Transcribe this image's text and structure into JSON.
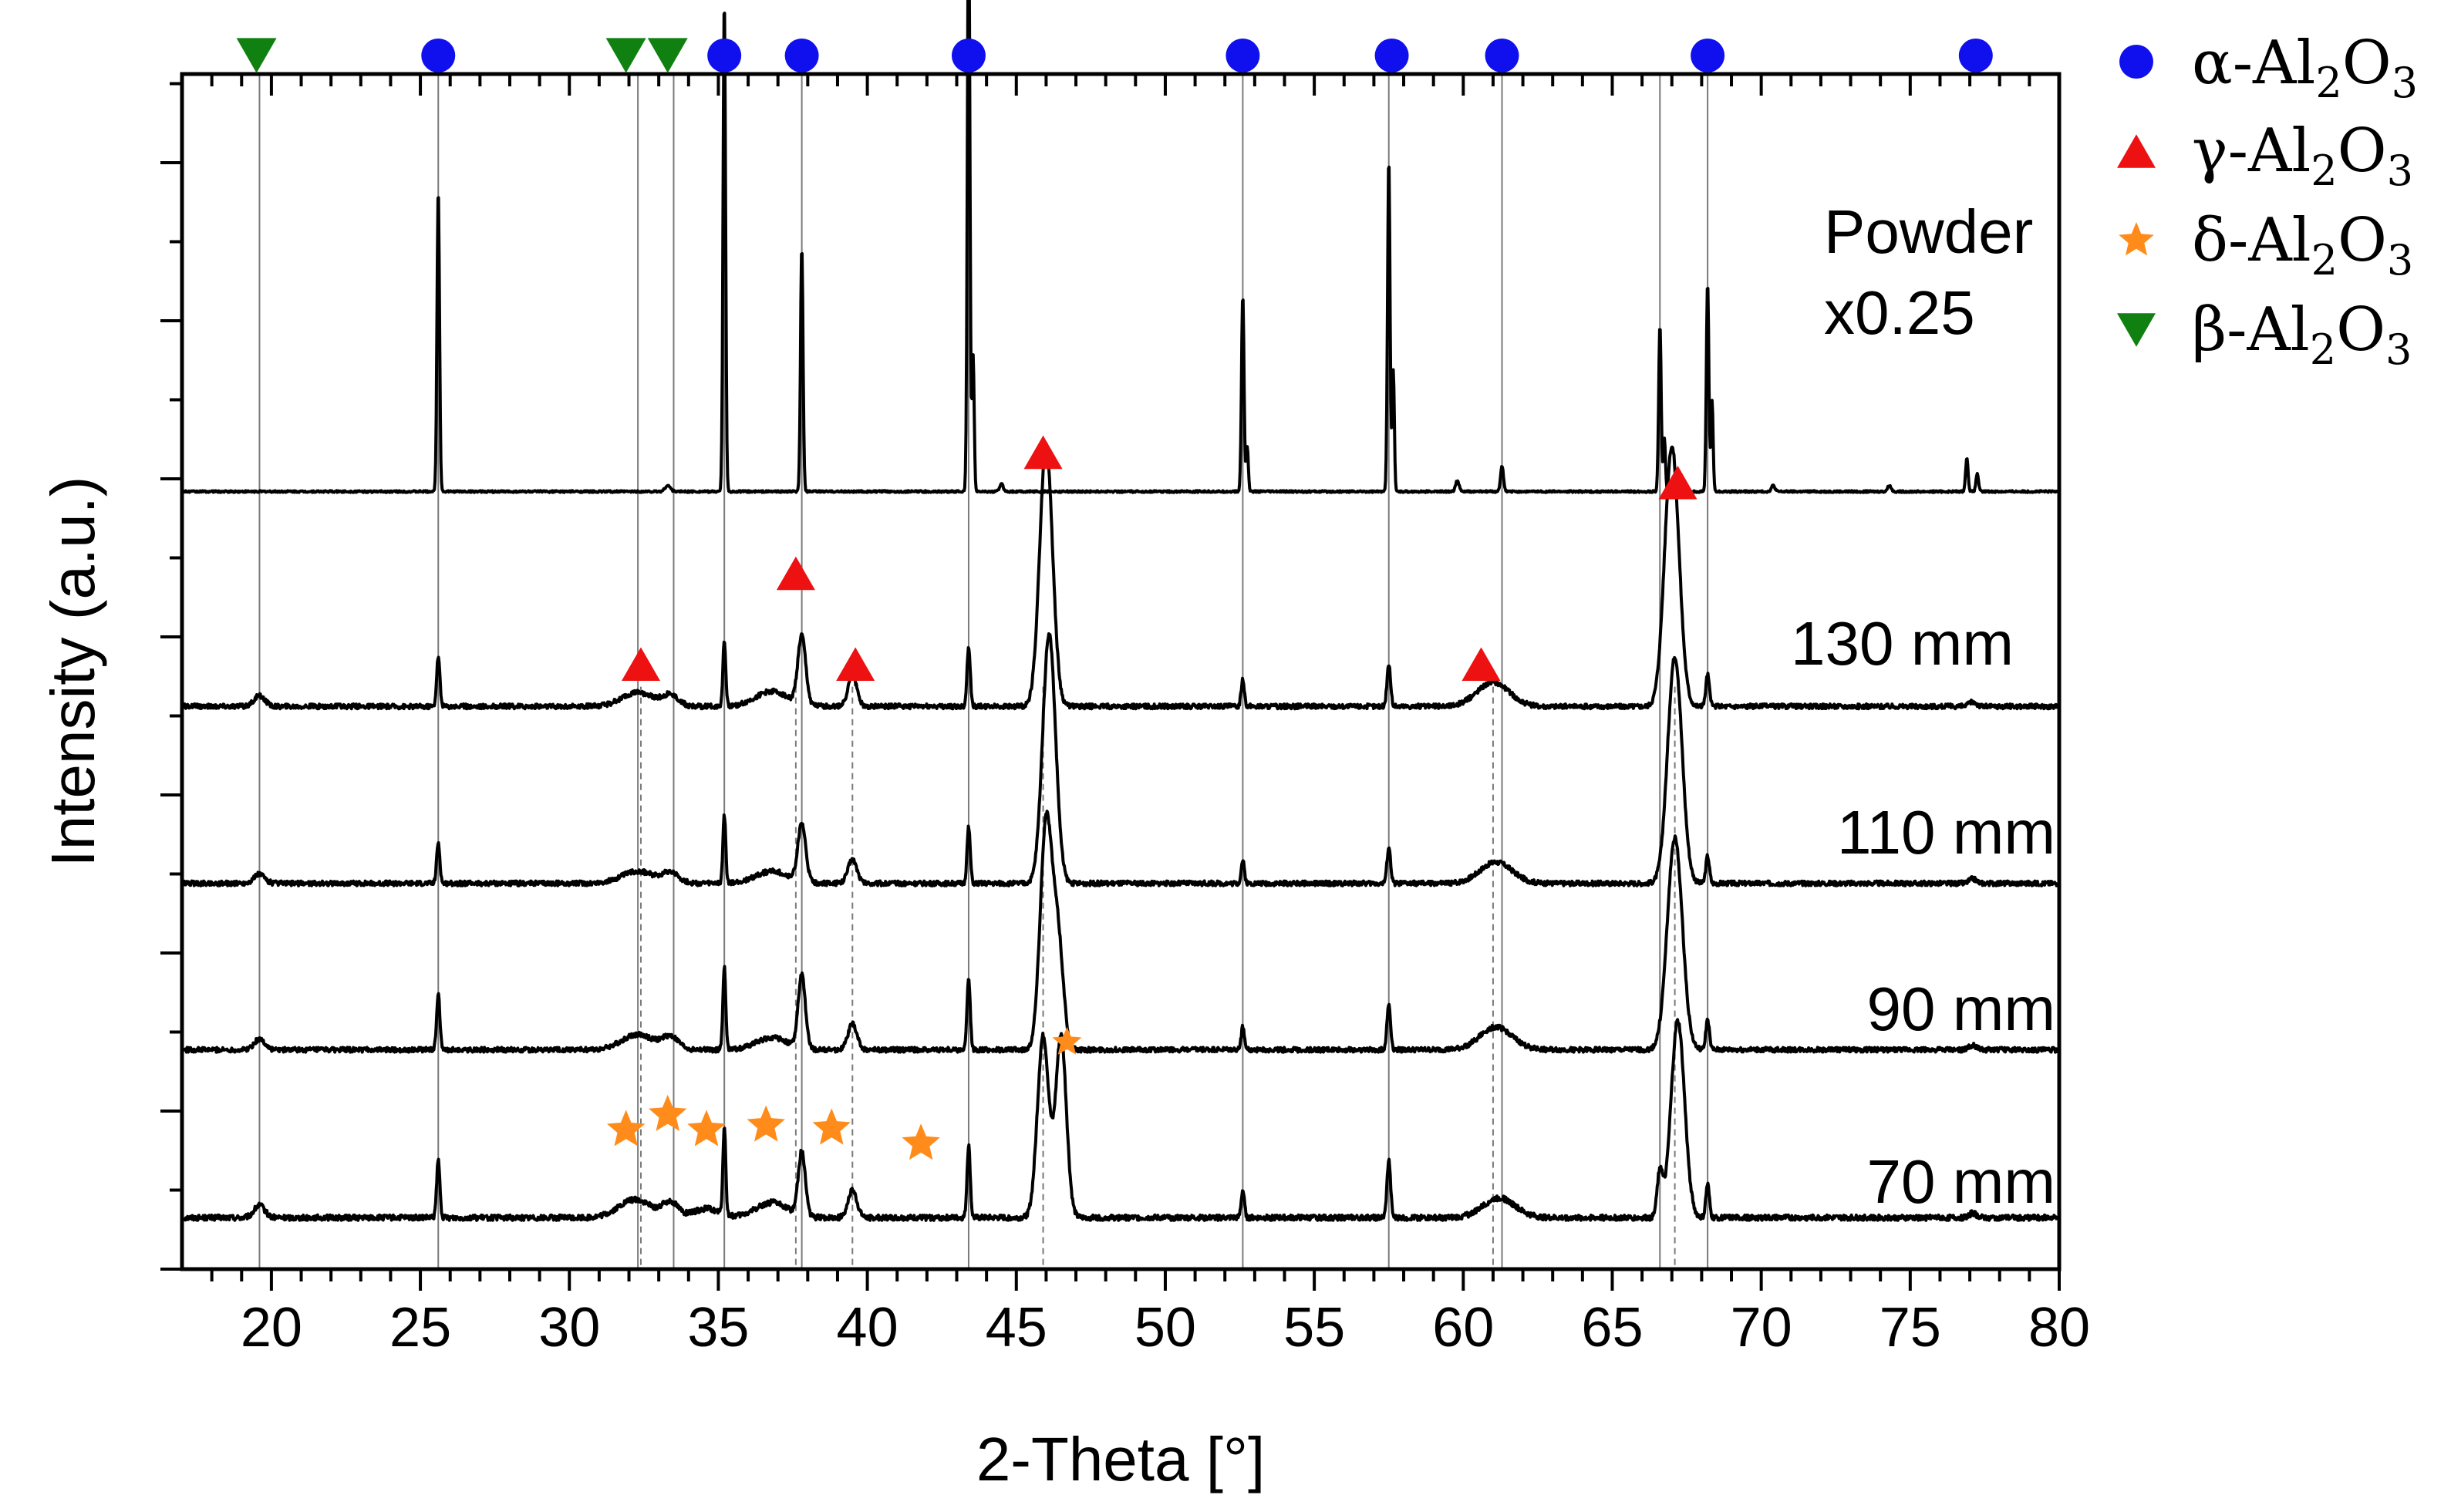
{
  "chart_data": {
    "type": "line",
    "title": "",
    "xlabel": "2-Theta [°]",
    "ylabel": "Intensity (a.u.)",
    "xlim": [
      17,
      80
    ],
    "xticks": [
      20,
      25,
      30,
      35,
      40,
      45,
      50,
      55,
      60,
      65,
      70,
      75,
      80
    ],
    "xtick_labels": [
      "20",
      "25",
      "30",
      "35",
      "40",
      "45",
      "50",
      "55",
      "60",
      "65",
      "70",
      "75",
      "80"
    ],
    "y_ticks_labeled": false,
    "grid": false,
    "legend": {
      "placement": "top-right outside",
      "entries": [
        {
          "marker": "circle",
          "color": "#1010ee",
          "greek": "α",
          "formula": "Al",
          "sub1": "2",
          "mid": "O",
          "sub2": "3"
        },
        {
          "marker": "triangle-up",
          "color": "#ee1111",
          "greek": "γ",
          "formula": "Al",
          "sub1": "2",
          "mid": "O",
          "sub2": "3"
        },
        {
          "marker": "star",
          "color": "#ff8c1a",
          "greek": "δ",
          "formula": "Al",
          "sub1": "2",
          "mid": "O",
          "sub2": "3"
        },
        {
          "marker": "triangle-down",
          "color": "#108010",
          "greek": "β",
          "formula": "Al",
          "sub1": "2",
          "mid": "O",
          "sub2": "3"
        }
      ]
    },
    "phase_lines": {
      "alpha_solid": [
        19.6,
        25.6,
        32.3,
        33.5,
        35.2,
        37.8,
        43.4,
        52.6,
        57.5,
        61.3,
        66.6,
        68.2
      ],
      "gamma_dashed": [
        32.4,
        37.6,
        39.5,
        45.9,
        61.0,
        67.1
      ]
    },
    "markers": {
      "alpha": [
        25.6,
        35.2,
        37.8,
        43.4,
        52.6,
        57.6,
        61.3,
        68.2,
        77.2
      ],
      "beta": [
        19.5,
        31.9,
        33.3
      ],
      "gamma": [
        {
          "x": 32.4,
          "y": 3.7
        },
        {
          "x": 37.6,
          "y": 4.3
        },
        {
          "x": 39.6,
          "y": 3.7
        },
        {
          "x": 45.9,
          "y": 5.1
        },
        {
          "x": 60.6,
          "y": 3.7
        },
        {
          "x": 67.2,
          "y": 4.9
        }
      ],
      "delta": [
        {
          "x": 31.9,
          "y": 0.62,
          "big": true
        },
        {
          "x": 33.3,
          "y": 0.72,
          "big": true
        },
        {
          "x": 34.6,
          "y": 0.62,
          "big": true
        },
        {
          "x": 36.6,
          "y": 0.65,
          "big": true
        },
        {
          "x": 38.8,
          "y": 0.63,
          "big": true
        },
        {
          "x": 41.8,
          "y": 0.53,
          "big": true
        },
        {
          "x": 46.7,
          "y": 1.2,
          "big": false
        }
      ]
    },
    "series": [
      {
        "name": "70 mm",
        "label": "70 mm",
        "baseline": 0.04,
        "scale": 1.0,
        "noise": 0.018,
        "peaks": [
          {
            "x": 19.6,
            "h": 0.08,
            "w": 0.3
          },
          {
            "x": 25.6,
            "h": 0.38,
            "w": 0.09
          },
          {
            "x": 32.2,
            "h": 0.12,
            "w": 0.9
          },
          {
            "x": 33.4,
            "h": 0.1,
            "w": 0.45
          },
          {
            "x": 34.6,
            "h": 0.06,
            "w": 0.7
          },
          {
            "x": 35.2,
            "h": 0.58,
            "w": 0.08
          },
          {
            "x": 36.8,
            "h": 0.1,
            "w": 0.9
          },
          {
            "x": 37.8,
            "h": 0.42,
            "w": 0.2
          },
          {
            "x": 39.5,
            "h": 0.18,
            "w": 0.25
          },
          {
            "x": 43.4,
            "h": 0.48,
            "w": 0.09
          },
          {
            "x": 45.9,
            "h": 1.2,
            "w": 0.32
          },
          {
            "x": 46.5,
            "h": 1.2,
            "w": 0.3
          },
          {
            "x": 52.6,
            "h": 0.18,
            "w": 0.09
          },
          {
            "x": 57.5,
            "h": 0.38,
            "w": 0.1
          },
          {
            "x": 61.2,
            "h": 0.13,
            "w": 0.9
          },
          {
            "x": 66.6,
            "h": 0.3,
            "w": 0.15
          },
          {
            "x": 67.2,
            "h": 1.3,
            "w": 0.38
          },
          {
            "x": 68.2,
            "h": 0.22,
            "w": 0.1
          },
          {
            "x": 77.1,
            "h": 0.03,
            "w": 0.2
          }
        ]
      },
      {
        "name": "90 mm",
        "label": "90 mm",
        "baseline": 1.15,
        "scale": 1.0,
        "noise": 0.016,
        "peaks": [
          {
            "x": 19.6,
            "h": 0.07,
            "w": 0.3
          },
          {
            "x": 25.6,
            "h": 0.37,
            "w": 0.09
          },
          {
            "x": 32.3,
            "h": 0.1,
            "w": 0.9
          },
          {
            "x": 33.4,
            "h": 0.08,
            "w": 0.45
          },
          {
            "x": 35.2,
            "h": 0.55,
            "w": 0.08
          },
          {
            "x": 36.8,
            "h": 0.08,
            "w": 0.9
          },
          {
            "x": 37.8,
            "h": 0.48,
            "w": 0.2
          },
          {
            "x": 39.5,
            "h": 0.17,
            "w": 0.25
          },
          {
            "x": 43.4,
            "h": 0.47,
            "w": 0.09
          },
          {
            "x": 46.0,
            "h": 1.5,
            "w": 0.33
          },
          {
            "x": 46.4,
            "h": 0.7,
            "w": 0.3
          },
          {
            "x": 52.6,
            "h": 0.15,
            "w": 0.09
          },
          {
            "x": 57.5,
            "h": 0.3,
            "w": 0.1
          },
          {
            "x": 61.1,
            "h": 0.15,
            "w": 0.9
          },
          {
            "x": 67.1,
            "h": 1.4,
            "w": 0.42
          },
          {
            "x": 68.2,
            "h": 0.2,
            "w": 0.1
          },
          {
            "x": 77.1,
            "h": 0.03,
            "w": 0.2
          }
        ]
      },
      {
        "name": "110 mm",
        "label": "110 mm",
        "baseline": 2.25,
        "scale": 1.0,
        "noise": 0.016,
        "peaks": [
          {
            "x": 19.6,
            "h": 0.06,
            "w": 0.3
          },
          {
            "x": 25.6,
            "h": 0.27,
            "w": 0.09
          },
          {
            "x": 32.3,
            "h": 0.08,
            "w": 0.9
          },
          {
            "x": 33.4,
            "h": 0.07,
            "w": 0.45
          },
          {
            "x": 35.2,
            "h": 0.45,
            "w": 0.08
          },
          {
            "x": 36.8,
            "h": 0.08,
            "w": 0.9
          },
          {
            "x": 37.8,
            "h": 0.38,
            "w": 0.22
          },
          {
            "x": 39.5,
            "h": 0.16,
            "w": 0.25
          },
          {
            "x": 43.4,
            "h": 0.37,
            "w": 0.09
          },
          {
            "x": 46.1,
            "h": 1.65,
            "w": 0.36
          },
          {
            "x": 52.6,
            "h": 0.15,
            "w": 0.09
          },
          {
            "x": 57.5,
            "h": 0.24,
            "w": 0.1
          },
          {
            "x": 61.1,
            "h": 0.14,
            "w": 0.9
          },
          {
            "x": 67.1,
            "h": 1.5,
            "w": 0.4
          },
          {
            "x": 68.2,
            "h": 0.18,
            "w": 0.1
          },
          {
            "x": 77.1,
            "h": 0.03,
            "w": 0.2
          }
        ]
      },
      {
        "name": "130 mm",
        "label": "130 mm",
        "baseline": 3.42,
        "scale": 1.0,
        "noise": 0.016,
        "peaks": [
          {
            "x": 19.6,
            "h": 0.07,
            "w": 0.3
          },
          {
            "x": 25.6,
            "h": 0.33,
            "w": 0.09
          },
          {
            "x": 32.3,
            "h": 0.09,
            "w": 0.9
          },
          {
            "x": 33.4,
            "h": 0.07,
            "w": 0.45
          },
          {
            "x": 35.2,
            "h": 0.43,
            "w": 0.08
          },
          {
            "x": 36.8,
            "h": 0.1,
            "w": 0.9
          },
          {
            "x": 37.8,
            "h": 0.45,
            "w": 0.22
          },
          {
            "x": 39.5,
            "h": 0.2,
            "w": 0.25
          },
          {
            "x": 43.4,
            "h": 0.4,
            "w": 0.09
          },
          {
            "x": 46.0,
            "h": 1.73,
            "w": 0.36
          },
          {
            "x": 52.6,
            "h": 0.18,
            "w": 0.09
          },
          {
            "x": 57.5,
            "h": 0.28,
            "w": 0.1
          },
          {
            "x": 61.0,
            "h": 0.16,
            "w": 0.9
          },
          {
            "x": 67.0,
            "h": 1.72,
            "w": 0.4
          },
          {
            "x": 68.2,
            "h": 0.21,
            "w": 0.1
          },
          {
            "x": 77.1,
            "h": 0.03,
            "w": 0.2
          }
        ]
      },
      {
        "name": "Powder",
        "label": "Powder",
        "scale_label": "x0.25",
        "baseline": 4.84,
        "scale": 1.0,
        "noise": 0.006,
        "peaks": [
          {
            "x": 25.6,
            "h": 2.0,
            "w": 0.07
          },
          {
            "x": 33.3,
            "h": 0.04,
            "w": 0.15
          },
          {
            "x": 35.2,
            "h": 3.25,
            "w": 0.07
          },
          {
            "x": 37.8,
            "h": 1.62,
            "w": 0.07
          },
          {
            "x": 43.4,
            "h": 3.95,
            "w": 0.07
          },
          {
            "x": 43.55,
            "h": 0.9,
            "w": 0.06
          },
          {
            "x": 44.5,
            "h": 0.05,
            "w": 0.1
          },
          {
            "x": 52.6,
            "h": 1.3,
            "w": 0.07
          },
          {
            "x": 52.75,
            "h": 0.3,
            "w": 0.06
          },
          {
            "x": 57.5,
            "h": 2.2,
            "w": 0.07
          },
          {
            "x": 57.65,
            "h": 0.8,
            "w": 0.06
          },
          {
            "x": 59.8,
            "h": 0.07,
            "w": 0.1
          },
          {
            "x": 61.3,
            "h": 0.17,
            "w": 0.08
          },
          {
            "x": 66.6,
            "h": 1.1,
            "w": 0.07
          },
          {
            "x": 66.75,
            "h": 0.35,
            "w": 0.06
          },
          {
            "x": 68.2,
            "h": 1.38,
            "w": 0.07
          },
          {
            "x": 68.35,
            "h": 0.6,
            "w": 0.06
          },
          {
            "x": 70.4,
            "h": 0.04,
            "w": 0.1
          },
          {
            "x": 74.3,
            "h": 0.04,
            "w": 0.1
          },
          {
            "x": 76.9,
            "h": 0.22,
            "w": 0.07
          },
          {
            "x": 77.25,
            "h": 0.12,
            "w": 0.07
          }
        ]
      }
    ]
  }
}
